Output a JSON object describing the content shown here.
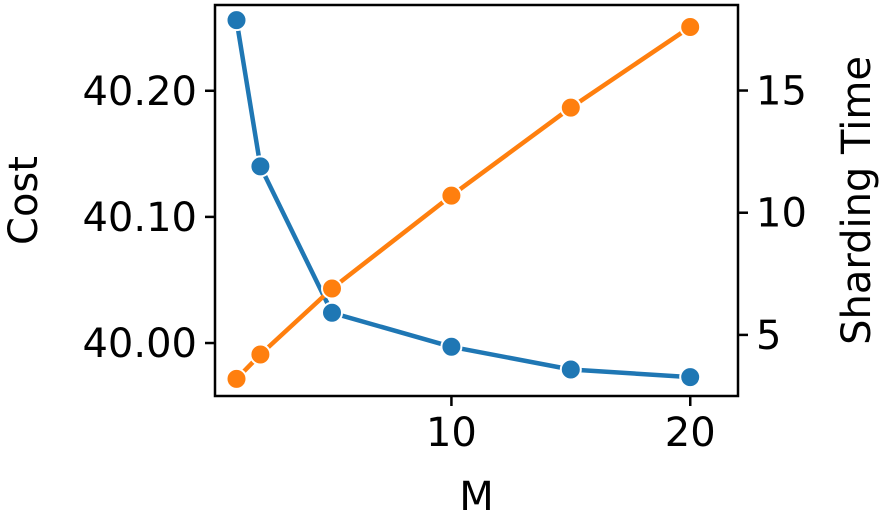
{
  "chart_data": {
    "type": "line",
    "xlabel": "M",
    "ylabel_left": "Cost",
    "ylabel_right": "Sharding Time",
    "xlim": [
      0.1,
      22
    ],
    "ylim_left": [
      39.958,
      40.268
    ],
    "ylim_right": [
      2.5,
      18.5
    ],
    "x_ticks": [
      10,
      20
    ],
    "x_tick_labels": [
      "10",
      "20"
    ],
    "y_left_ticks": [
      40.0,
      40.1,
      40.2
    ],
    "y_left_tick_labels": [
      "40.00",
      "40.10",
      "40.20"
    ],
    "y_right_ticks": [
      5,
      10,
      15
    ],
    "y_right_tick_labels": [
      "5",
      "10",
      "15"
    ],
    "grid": false,
    "legend": "none",
    "series": [
      {
        "axis": "left",
        "color": "#1f77b4",
        "x": [
          1,
          2,
          5,
          10,
          15,
          20
        ],
        "values": [
          40.256,
          40.14,
          40.024,
          39.997,
          39.979,
          39.973
        ]
      },
      {
        "axis": "right",
        "color": "#ff7f0e",
        "x": [
          1,
          2,
          5,
          10,
          15,
          20
        ],
        "values": [
          3.2,
          4.2,
          6.9,
          10.7,
          14.3,
          17.6
        ]
      }
    ]
  }
}
